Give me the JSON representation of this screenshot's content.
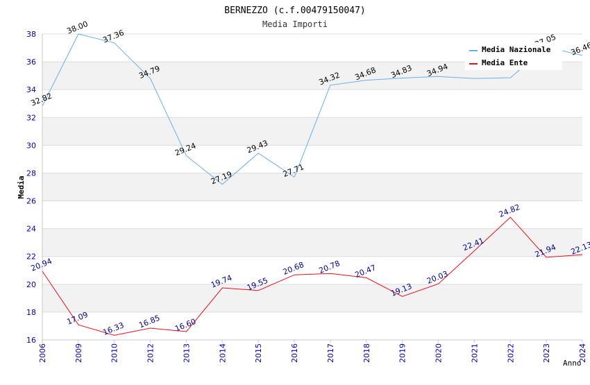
{
  "chart_data": {
    "type": "line",
    "title": "BERNEZZO (c.f.00479150047)",
    "subtitle": "Media Importi",
    "xlabel": "Anno",
    "ylabel": "Media",
    "categories": [
      "2006",
      "2009",
      "2010",
      "2012",
      "2013",
      "2014",
      "2015",
      "2016",
      "2017",
      "2018",
      "2019",
      "2020",
      "2021",
      "2022",
      "2023",
      "2024"
    ],
    "ylim": [
      16,
      38
    ],
    "yticks": [
      "16",
      "18",
      "20",
      "22",
      "24",
      "26",
      "28",
      "30",
      "32",
      "34",
      "36",
      "38"
    ],
    "grid": "horizontal alternating bands",
    "legend_placement": "top-right",
    "series": [
      {
        "name": "Media Nazionale",
        "color": "#6aaee6",
        "label_color": "#000000",
        "values": [
          32.82,
          38.0,
          37.36,
          34.79,
          29.24,
          27.19,
          29.43,
          27.71,
          34.32,
          34.68,
          34.83,
          34.94,
          34.8,
          34.85,
          37.05,
          36.46
        ],
        "labels": [
          "32.82",
          "38.00",
          "37.36",
          "34.79",
          "29.24",
          "27.19",
          "29.43",
          "27.71",
          "34.32",
          "34.68",
          "34.83",
          "34.94",
          "",
          "",
          "37.05",
          "36.46"
        ]
      },
      {
        "name": "Media Ente",
        "color": "#e8101a",
        "label_color": "#00008b",
        "values": [
          20.94,
          17.09,
          16.33,
          16.85,
          16.6,
          19.74,
          19.55,
          20.68,
          20.78,
          20.47,
          19.13,
          20.03,
          22.41,
          24.82,
          21.94,
          22.13
        ],
        "labels": [
          "20.94",
          "17.09",
          "16.33",
          "16.85",
          "16.60",
          "19.74",
          "19.55",
          "20.68",
          "20.78",
          "20.47",
          "19.13",
          "20.03",
          "22.41",
          "24.82",
          "21.94",
          "22.13"
        ]
      }
    ]
  }
}
